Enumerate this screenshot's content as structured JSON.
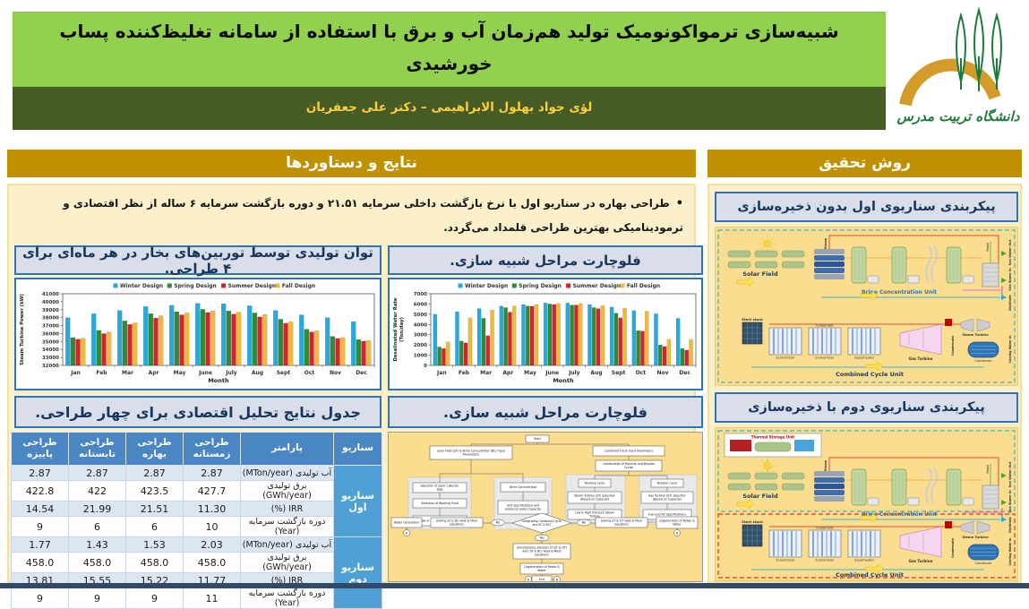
{
  "header": {
    "title_line1": "شبیه‌سازی ترمواکونومیک تولید هم‌زمان آب و برق با استفاده از سامانه تغلیظ‌کننده پساب",
    "title_line2": "خورشیدی",
    "authors": "لؤی جواد بهلول الابراهیمی – دکتر علی جعفریان",
    "logo_text": "دانشگاه تربیت مدرس",
    "colors": {
      "title_bg": "#92D050",
      "authors_bg": "#465C25",
      "authors_text": "#FFCE3C",
      "section_bar": "#BF9000",
      "panel_bg": "#FCF0CB",
      "diagram_bg": "#FBDD8F"
    }
  },
  "results": {
    "header": "نتایج و دستاوردها",
    "bullet": "طراحی بهاره در سناریو اول با نرخ بازگشت داخلی سرمایه ۲۱.۵۱ و دوره بازگشت سرمایه ۶ ساله از نظر اقتصادی و ترمودینامیکی بهترین طراحی قلمداد می‌گردد.",
    "chart1_title": "توان تولیدی توسط توربین‌های بخار در هر ماه‌ای برای ۴ طراحی.",
    "chart2_title": "فلوچارت مراحل شبیه سازی.",
    "table_title": "جدول نتایج تحلیل اقتصادی برای چهار طراحی.",
    "flowchart_title": "فلوچارت مراحل شبیه سازی.",
    "stray_char": "ت"
  },
  "method": {
    "header": "روش تحقیق",
    "diagram1_title": "پیکربندی سناریوی اول بدون ذخیره‌سازی",
    "diagram2_title": "پیکربندی سناریوی دوم با ذخیره‌سازی",
    "plant_labels": {
      "solar_field": "Solar Field",
      "brine_unit": "Brine Concentration Unit",
      "combined_unit": "Combined Cycle Unit",
      "storage_unit": "Thermal Storage Unit",
      "sea_water_out": "Sea Water Out",
      "sea_water_in": "Sea Water In",
      "distillate": "Distillate",
      "steam": "Steam",
      "brine": "Brine",
      "feed": "Feed",
      "condensate": "Condensate",
      "cooling": "Cooling Water In",
      "steam_turbine": "Steam Turbine",
      "gas_turbine": "Gas Turbine",
      "condenser": "Condenser",
      "economizer": "Economizer",
      "evaporator": "Evaporator",
      "superheater": "Superheater",
      "stack": "Steel stack"
    }
  },
  "chart_data": [
    {
      "type": "bar",
      "title": "توان تولیدی توسط توربین‌های بخار در هر ماه‌ای برای ۴ طراحی.",
      "categories": [
        "Jan",
        "Feb",
        "Mar",
        "Apr",
        "May",
        "June",
        "July",
        "Aug",
        "Sept",
        "Oct",
        "Nov",
        "Dec"
      ],
      "series": [
        {
          "name": "Winter Design",
          "color": "#29A8DC",
          "values": [
            38000,
            38500,
            38900,
            39400,
            39550,
            39800,
            39750,
            39500,
            38900,
            38350,
            38000,
            37500
          ]
        },
        {
          "name": "Spring Design",
          "color": "#2E8B33",
          "values": [
            35500,
            36400,
            37600,
            38500,
            38750,
            39050,
            38850,
            38600,
            37800,
            36550,
            35650,
            35250
          ]
        },
        {
          "name": "Summer Design",
          "color": "#D2252B",
          "values": [
            35300,
            36000,
            37150,
            37950,
            38350,
            38650,
            38450,
            38100,
            37300,
            36200,
            35400,
            35050
          ]
        },
        {
          "name": "Fall Design",
          "color": "#EFB93F",
          "values": [
            35400,
            36200,
            37350,
            38250,
            38600,
            38850,
            38700,
            38400,
            37500,
            36350,
            35500,
            35150
          ]
        }
      ],
      "xlabel": "Month",
      "ylabel": "Steam Turbine Power (kW)",
      "ylim": [
        32000,
        41000
      ],
      "ytick": 1000,
      "grid": false,
      "legend_position": "top"
    },
    {
      "type": "bar",
      "title": "فلوچارت مراحل شبیه سازی.",
      "categories": [
        "Jan",
        "Feb",
        "Mar",
        "Apr",
        "May",
        "June",
        "July",
        "Aug",
        "Sept",
        "Oct",
        "Nov",
        "Dec"
      ],
      "series": [
        {
          "name": "Winter Design",
          "color": "#29A8DC",
          "values": [
            5000,
            5250,
            5550,
            5800,
            5950,
            6100,
            6100,
            5950,
            5700,
            5350,
            5050,
            4600
          ]
        },
        {
          "name": "Spring Design",
          "color": "#2E8B33",
          "values": [
            1800,
            2380,
            4600,
            5650,
            5800,
            6000,
            5900,
            5650,
            5100,
            3400,
            2000,
            1650
          ]
        },
        {
          "name": "Summer Design",
          "color": "#D2252B",
          "values": [
            1650,
            2200,
            2900,
            5200,
            5780,
            5950,
            5900,
            5550,
            4650,
            3350,
            1850,
            1500
          ]
        },
        {
          "name": "Fall Design",
          "color": "#EFB93F",
          "values": [
            2300,
            4650,
            5400,
            5800,
            5950,
            6050,
            6050,
            5850,
            5600,
            5300,
            2550,
            2550
          ]
        }
      ],
      "xlabel": "Month",
      "ylabel": "Desalinated Water Rate\n(Ton/day)",
      "ylim": [
        0,
        7000
      ],
      "ytick": 1000,
      "grid": false,
      "legend_position": "top"
    }
  ],
  "table": {
    "col_headers": [
      "سناریو",
      "پارامتر",
      "طراحی\nزمستانه",
      "طراحی\nبهاره",
      "طراحی\nتابستانه",
      "طراحی\nپاییزه"
    ],
    "scenarios": [
      {
        "name": "سناریو اول",
        "rows": [
          {
            "param": "آب تولیدی (MTon/year)",
            "values": [
              "2.87",
              "2.87",
              "2.87",
              "2.87"
            ]
          },
          {
            "param": "برق تولیدی (GWh/year)",
            "values": [
              "427.7",
              "423.5",
              "422",
              "422.8"
            ]
          },
          {
            "param": "IRR (%)",
            "values": [
              "11.30",
              "21.51",
              "21.99",
              "14.54"
            ]
          },
          {
            "param": "دوره بازگشت سرمایه (Year)",
            "values": [
              "10",
              "6",
              "6",
              "9"
            ]
          }
        ]
      },
      {
        "name": "سناریو دوم",
        "rows": [
          {
            "param": "آب تولیدی (MTon/year)",
            "values": [
              "2.03",
              "1.53",
              "1.43",
              "1.77"
            ]
          },
          {
            "param": "برق تولیدی (GWh/year)",
            "values": [
              "458.0",
              "458.0",
              "458.0",
              "458.0"
            ]
          },
          {
            "param": "IRR (%)",
            "values": [
              "11.77",
              "15.22",
              "15.55",
              "13.81"
            ]
          },
          {
            "param": "دوره بازگشت سرمایه (Year)",
            "values": [
              "11",
              "9",
              "9",
              "9"
            ]
          }
        ]
      }
    ]
  },
  "flowchart": {
    "nodes": [
      "Start",
      "Solar Field (SF) & Brine Concentrator (BC) Input Parameters",
      "Combined Cycle Input Parameters",
      "Combination of Rankine and Brayton Cycles",
      "Selection of Solar Collector Type",
      "Selection of Working Fluid",
      "Single or double Storage Mode?",
      "Brine Concentrator",
      "Unit specifications and produced water Capacity",
      "Rankine Cycle",
      "Steam Turbine (ST) Selection (Based on Capacity)",
      "Low & High Pressure Steam Turbine",
      "Brayton Cycle",
      "Gas Turbine (GT) Selection (Based on Capacity)",
      "Fuel and Air Specifications",
      "Integrating Combined Cycle and SF & BC?",
      "No",
      "No",
      "Solving SF & BC Heat & Mass equations",
      "Water Generation",
      "Solving ST & GT Heat & Mass equations",
      "Cogeneration of Power & Water",
      "Yes",
      "Simultaneous Solution of (ST & GT) and (SF & BC) Heat & Mass equations",
      "Cogeneration of Power & Water",
      "End",
      "A",
      "B"
    ]
  }
}
